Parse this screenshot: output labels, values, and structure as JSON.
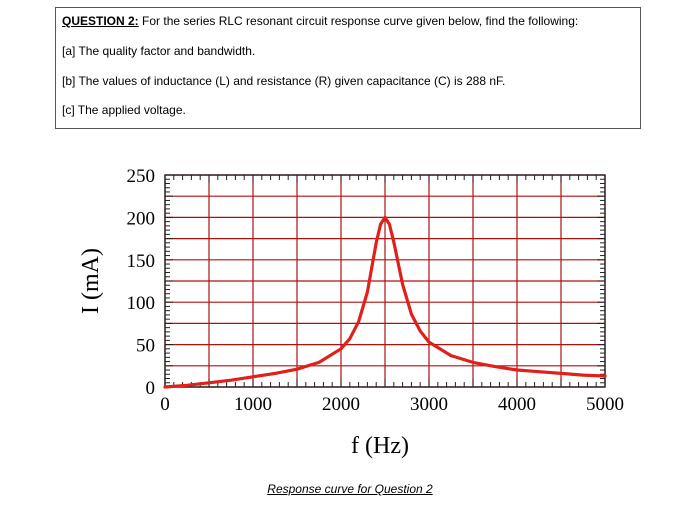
{
  "question": {
    "heading": "QUESTION 2:",
    "intro": " For the series RLC resonant circuit response curve given below, find the following:",
    "part_a": "[a] The quality factor and bandwidth.",
    "part_b": "[b] The values of inductance (L) and resistance (R) given capacitance (C) is 288 nF.",
    "part_c": "[c] The applied voltage."
  },
  "chart_data": {
    "type": "line",
    "title": "",
    "xlabel": "f (Hz)",
    "ylabel": "I (mA)",
    "xlim": [
      0,
      5000
    ],
    "ylim": [
      0,
      250
    ],
    "x_ticks": [
      "0",
      "1000",
      "2000",
      "3000",
      "4000",
      "5000"
    ],
    "y_ticks": [
      "0",
      "50",
      "100",
      "150",
      "200",
      "250"
    ],
    "grid": true,
    "grid_color": "#b01010",
    "line_color": "#e0201a",
    "series": [
      {
        "x": [
          0,
          250,
          500,
          750,
          1000,
          1250,
          1500,
          1750,
          2000,
          2100,
          2200,
          2300,
          2400,
          2450,
          2500,
          2550,
          2600,
          2700,
          2800,
          2900,
          3000,
          3250,
          3500,
          3750,
          4000,
          4250,
          4500,
          4750,
          5000
        ],
        "values": [
          0,
          2,
          5,
          8,
          12,
          16,
          21,
          29,
          45,
          57,
          77,
          112,
          170,
          192,
          200,
          192,
          171,
          121,
          86,
          66,
          53,
          37,
          29,
          24,
          20,
          18,
          16,
          14,
          13
        ]
      }
    ]
  },
  "caption": "Response curve for Question 2"
}
